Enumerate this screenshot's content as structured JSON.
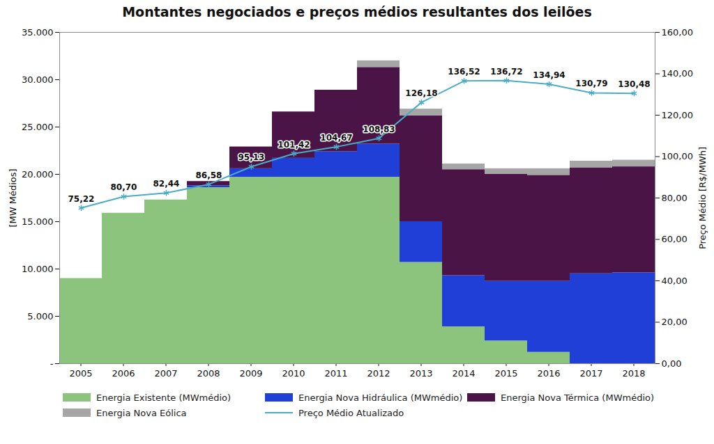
{
  "chart_data": {
    "type": "bar",
    "title": "Montantes negociados e preços médios resultantes dos leilões",
    "stacked": true,
    "grid": false,
    "categories": [
      "2005",
      "2006",
      "2007",
      "2008",
      "2009",
      "2010",
      "2011",
      "2012",
      "2013",
      "2014",
      "2015",
      "2016",
      "2017",
      "2018"
    ],
    "y_label": "[MW Médios]",
    "y2_label": "Preço Médio [R$/MWh]",
    "ylim": [
      0,
      35000
    ],
    "yticks": [
      {
        "value": 0,
        "label": "-"
      },
      {
        "value": 5000,
        "label": "5.000"
      },
      {
        "value": 10000,
        "label": "10.000"
      },
      {
        "value": 15000,
        "label": "15.000"
      },
      {
        "value": 20000,
        "label": "20.000"
      },
      {
        "value": 25000,
        "label": "25.000"
      },
      {
        "value": 30000,
        "label": "30.000"
      },
      {
        "value": 35000,
        "label": "35.000"
      }
    ],
    "y2lim": [
      0,
      160
    ],
    "y2ticks": [
      {
        "value": 0,
        "label": "0,00"
      },
      {
        "value": 20,
        "label": "20,00"
      },
      {
        "value": 40,
        "label": "40,00"
      },
      {
        "value": 60,
        "label": "60,00"
      },
      {
        "value": 80,
        "label": "80,00"
      },
      {
        "value": 100,
        "label": "100,00"
      },
      {
        "value": 120,
        "label": "120,00"
      },
      {
        "value": 140,
        "label": "140,00"
      },
      {
        "value": 160,
        "label": "160,00"
      }
    ],
    "series": [
      {
        "name": "Energia Existente (MWmédio)",
        "type": "bar",
        "color": "#8cc47e",
        "values": [
          9000,
          15900,
          17300,
          18600,
          19700,
          19700,
          19700,
          19700,
          10700,
          3900,
          2400,
          1200,
          0,
          0
        ]
      },
      {
        "name": "Energia Nova Hidráulica (MWmédio)",
        "type": "bar",
        "color": "#1f3fd6",
        "values": [
          0,
          0,
          0,
          200,
          900,
          2000,
          2700,
          3500,
          4300,
          5400,
          6300,
          7500,
          9500,
          9600
        ]
      },
      {
        "name": "Energia Nova Térmica (MWmédio)",
        "type": "bar",
        "color": "#4a1446",
        "values": [
          0,
          0,
          0,
          450,
          2300,
          4900,
          6500,
          8100,
          11200,
          11200,
          11300,
          11200,
          11200,
          11200
        ]
      },
      {
        "name": "Energia Nova Eólica",
        "type": "bar",
        "color": "#a6a6a6",
        "values": [
          0,
          0,
          0,
          0,
          0,
          0,
          0,
          700,
          700,
          600,
          600,
          700,
          700,
          700
        ]
      },
      {
        "name": "Preço Médio Atualizado",
        "type": "line",
        "axis": "y2",
        "color": "#4bacc6",
        "marker": "asterisk",
        "data_labels": true,
        "values": [
          75.22,
          80.7,
          82.44,
          86.58,
          95.13,
          101.42,
          104.67,
          108.83,
          126.18,
          136.52,
          136.72,
          134.94,
          130.79,
          130.48
        ],
        "value_labels": [
          "75,22",
          "80,70",
          "82,44",
          "86,58",
          "95,13",
          "101,42",
          "104,67",
          "108,83",
          "126,18",
          "136,52",
          "136,72",
          "134,94",
          "130,79",
          "130,48"
        ]
      }
    ]
  }
}
